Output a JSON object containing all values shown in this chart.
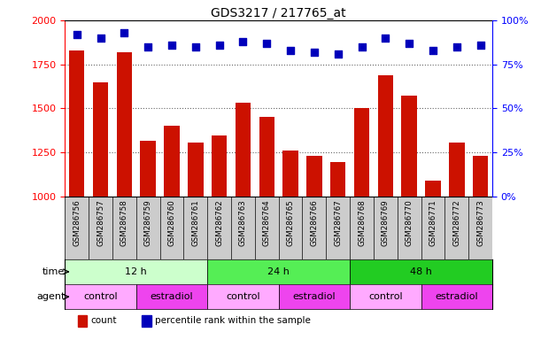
{
  "title": "GDS3217 / 217765_at",
  "samples": [
    "GSM286756",
    "GSM286757",
    "GSM286758",
    "GSM286759",
    "GSM286760",
    "GSM286761",
    "GSM286762",
    "GSM286763",
    "GSM286764",
    "GSM286765",
    "GSM286766",
    "GSM286767",
    "GSM286768",
    "GSM286769",
    "GSM286770",
    "GSM286771",
    "GSM286772",
    "GSM286773"
  ],
  "counts": [
    1830,
    1650,
    1820,
    1315,
    1400,
    1305,
    1345,
    1530,
    1450,
    1260,
    1230,
    1195,
    1500,
    1690,
    1570,
    1090,
    1305,
    1230
  ],
  "percentiles": [
    92,
    90,
    93,
    85,
    86,
    85,
    86,
    88,
    87,
    83,
    82,
    81,
    85,
    90,
    87,
    83,
    85,
    86
  ],
  "ylim_left": [
    1000,
    2000
  ],
  "ylim_right": [
    0,
    100
  ],
  "yticks_left": [
    1000,
    1250,
    1500,
    1750,
    2000
  ],
  "yticks_right": [
    0,
    25,
    50,
    75,
    100
  ],
  "bar_color": "#cc1100",
  "dot_color": "#0000bb",
  "grid_color": "#666666",
  "bg_color": "#ffffff",
  "tick_bg_color": "#cccccc",
  "time_groups": [
    {
      "label": "12 h",
      "start": 0,
      "end": 6,
      "color": "#ccffcc"
    },
    {
      "label": "24 h",
      "start": 6,
      "end": 12,
      "color": "#55ee55"
    },
    {
      "label": "48 h",
      "start": 12,
      "end": 18,
      "color": "#22cc22"
    }
  ],
  "agent_groups": [
    {
      "label": "control",
      "start": 0,
      "end": 3,
      "color": "#ffaaff"
    },
    {
      "label": "estradiol",
      "start": 3,
      "end": 6,
      "color": "#ee44ee"
    },
    {
      "label": "control",
      "start": 6,
      "end": 9,
      "color": "#ffaaff"
    },
    {
      "label": "estradiol",
      "start": 9,
      "end": 12,
      "color": "#ee44ee"
    },
    {
      "label": "control",
      "start": 12,
      "end": 15,
      "color": "#ffaaff"
    },
    {
      "label": "estradiol",
      "start": 15,
      "end": 18,
      "color": "#ee44ee"
    }
  ],
  "legend_items": [
    {
      "label": "count",
      "color": "#cc1100"
    },
    {
      "label": "percentile rank within the sample",
      "color": "#0000bb"
    }
  ]
}
